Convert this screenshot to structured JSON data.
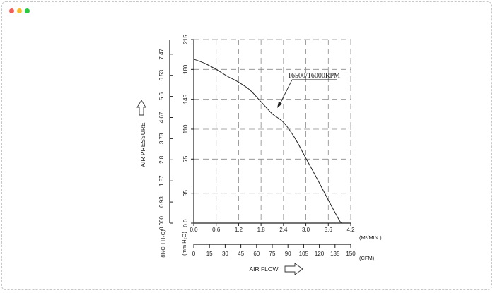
{
  "window": {
    "controls": [
      {
        "name": "close",
        "color": "#f25f57"
      },
      {
        "name": "minimize",
        "color": "#f6bd2f"
      },
      {
        "name": "maximize",
        "color": "#2ac940"
      }
    ]
  },
  "chart_data": {
    "type": "line",
    "annotation": "16500/16000RPM",
    "x_primary": {
      "ticks": [
        "0.0",
        "0.6",
        "1.2",
        "1.8",
        "2.4",
        "3.0",
        "3.6",
        "4.2"
      ],
      "range": [
        0,
        4.2
      ],
      "unit": "(M³/MIN.)"
    },
    "x_secondary": {
      "ticks": [
        "0",
        "15",
        "30",
        "45",
        "60",
        "75",
        "90",
        "105",
        "120",
        "135",
        "150"
      ],
      "range": [
        0,
        150
      ],
      "unit": "(CFM)"
    },
    "x_label": "AIR FLOW",
    "y_primary": {
      "ticks": [
        "0.0",
        "35",
        "75",
        "110",
        "145",
        "180",
        "215"
      ],
      "range": [
        0,
        215
      ],
      "unit": "(mm H₂O)"
    },
    "y_secondary": {
      "ticks": [
        "0.000",
        "0.93",
        "1.87",
        "2.8",
        "3.73",
        "4.67",
        "5.6",
        "6.53",
        "7.47"
      ],
      "unit": "(INCH H₂O)"
    },
    "y_label": "AIR PRESSURE",
    "grid": true,
    "series": [
      {
        "x": [
          0.0,
          0.3,
          0.6,
          0.9,
          1.2,
          1.5,
          1.8,
          2.1,
          2.4,
          2.7,
          3.0,
          3.3,
          3.6,
          3.9,
          3.97
        ],
        "y": [
          192,
          187,
          180,
          172,
          165,
          156,
          142,
          128,
          118,
          100,
          76,
          52,
          27,
          3,
          0
        ]
      }
    ]
  }
}
